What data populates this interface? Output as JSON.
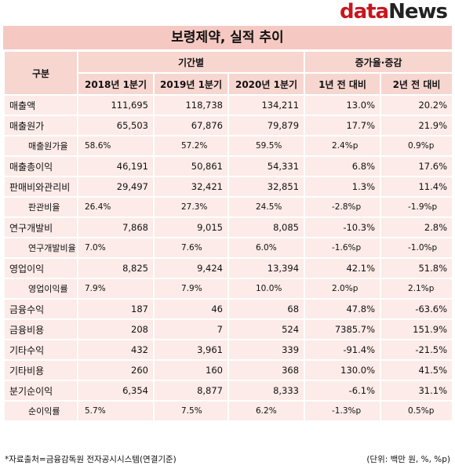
{
  "logo": {
    "part1": "data",
    "part2": "News"
  },
  "title": "보령제약, 실적 추이",
  "header": {
    "category": "구분",
    "period_group": "기간별",
    "change_group": "증가율·증감",
    "columns": [
      "2018년 1분기",
      "2019년 1분기",
      "2020년 1분기",
      "1년 전 대비",
      "2년 전 대비"
    ]
  },
  "table": {
    "rows": [
      {
        "label": "매출액",
        "sub": false,
        "cells": [
          "111,695",
          "118,738",
          "134,211",
          "13.0%",
          "20.2%"
        ]
      },
      {
        "label": "매출원가",
        "sub": false,
        "cells": [
          "65,503",
          "67,876",
          "79,879",
          "17.7%",
          "21.9%"
        ]
      },
      {
        "label": "매출원가율",
        "sub": true,
        "cells": [
          "58.6%",
          "57.2%",
          "59.5%",
          "2.4%p",
          "0.9%p"
        ]
      },
      {
        "label": "매출총이익",
        "sub": false,
        "cells": [
          "46,191",
          "50,861",
          "54,331",
          "6.8%",
          "17.6%"
        ]
      },
      {
        "label": "판매비와관리비",
        "sub": false,
        "cells": [
          "29,497",
          "32,421",
          "32,851",
          "1.3%",
          "11.4%"
        ]
      },
      {
        "label": "판관비율",
        "sub": true,
        "cells": [
          "26.4%",
          "27.3%",
          "24.5%",
          "-2.8%p",
          "-1.9%p"
        ]
      },
      {
        "label": "연구개발비",
        "sub": false,
        "cells": [
          "7,868",
          "9,015",
          "8,085",
          "-10.3%",
          "2.8%"
        ]
      },
      {
        "label": "연구개발비율",
        "sub": true,
        "cells": [
          "7.0%",
          "7.6%",
          "6.0%",
          "-1.6%p",
          "-1.0%p"
        ]
      },
      {
        "label": "영업이익",
        "sub": false,
        "cells": [
          "8,825",
          "9,424",
          "13,394",
          "42.1%",
          "51.8%"
        ]
      },
      {
        "label": "영업이익률",
        "sub": true,
        "cells": [
          "7.9%",
          "7.9%",
          "10.0%",
          "2.0%p",
          "2.1%p"
        ]
      },
      {
        "label": "금융수익",
        "sub": false,
        "cells": [
          "187",
          "46",
          "68",
          "47.8%",
          "-63.6%"
        ]
      },
      {
        "label": "금융비용",
        "sub": false,
        "cells": [
          "208",
          "7",
          "524",
          "7385.7%",
          "151.9%"
        ]
      },
      {
        "label": "기타수익",
        "sub": false,
        "cells": [
          "432",
          "3,961",
          "339",
          "-91.4%",
          "-21.5%"
        ]
      },
      {
        "label": "기타비용",
        "sub": false,
        "cells": [
          "260",
          "160",
          "368",
          "130.0%",
          "41.5%"
        ]
      },
      {
        "label": "분기순이익",
        "sub": false,
        "cells": [
          "6,354",
          "8,877",
          "8,333",
          "-6.1%",
          "31.1%"
        ]
      },
      {
        "label": "순이익률",
        "sub": true,
        "cells": [
          "5.7%",
          "7.5%",
          "6.2%",
          "-1.3%p",
          "0.5%p"
        ]
      }
    ]
  },
  "footer": {
    "source": "*자료출처=금융감독원 전자공시시스템(연결기준)",
    "unit": "(단위: 백만 원, %, %p)"
  }
}
